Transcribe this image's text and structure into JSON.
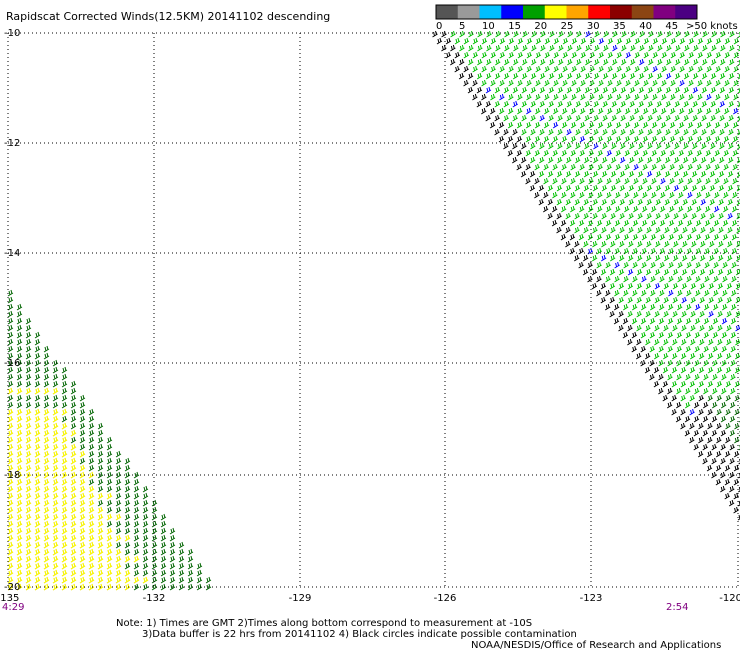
{
  "title": "Rapidscat Corrected Winds(12.5KM) 20141102 descending",
  "legend": {
    "labels": [
      "0",
      "5",
      "10",
      "15",
      "20",
      "25",
      "30",
      "35",
      "40",
      "45",
      ">50 knots"
    ],
    "colors": [
      "#555555",
      "#9a9a9a",
      "#00bfff",
      "#0000ff",
      "#00a000",
      "#ffff00",
      "#ffa500",
      "#ff0000",
      "#8b0000",
      "#8b4513",
      "#800080",
      "#4b0082"
    ]
  },
  "axes": {
    "x_ticks": [
      "-135",
      "-132",
      "-129",
      "-126",
      "-123",
      "-120"
    ],
    "y_ticks": [
      "-10",
      "-12",
      "-14",
      "-16",
      "-18",
      "-20"
    ]
  },
  "times": {
    "left": "4:29",
    "right": "2:54"
  },
  "notes": [
    "Note: 1) Times are GMT 2)Times along bottom correspond to measurement at -10S",
    "3)Data buffer is 22 hrs from 20141102 4) Black circles indicate possible contamination",
    "NOAA/NESDIS/Office of Research and Applications"
  ],
  "colors": {
    "swath_green": "#00c000",
    "dark_green": "#006400",
    "yellow": "#ffff00",
    "blue": "#0000ff",
    "black": "#000000",
    "grid": "#000000"
  }
}
